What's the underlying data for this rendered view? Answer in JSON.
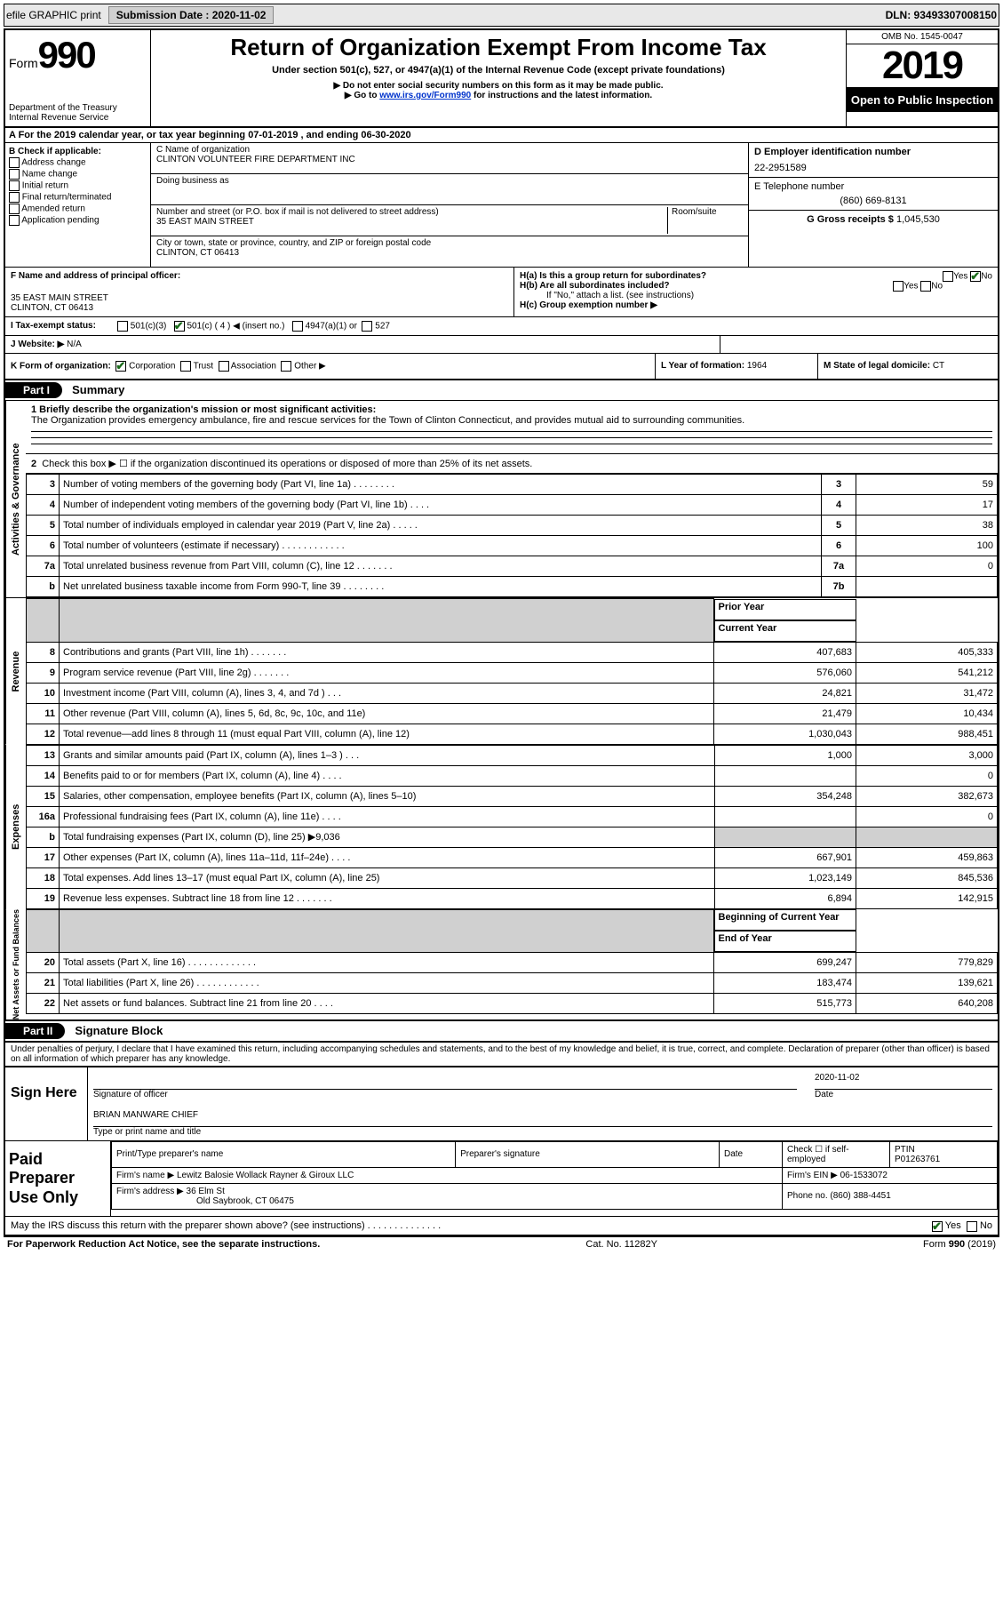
{
  "topbar": {
    "efile": "efile GRAPHIC print",
    "btn1": "Submission Date : 2020-11-02",
    "dln": "DLN: 93493307008150"
  },
  "header": {
    "form_label": "Form",
    "form_num": "990",
    "dept": "Department of the Treasury\nInternal Revenue Service",
    "title": "Return of Organization Exempt From Income Tax",
    "sub": "Under section 501(c), 527, or 4947(a)(1) of the Internal Revenue Code (except private foundations)",
    "warn1": "▶ Do not enter social security numbers on this form as it may be made public.",
    "warn2_pre": "▶ Go to ",
    "warn2_link": "www.irs.gov/Form990",
    "warn2_post": " for instructions and the latest information.",
    "omb": "OMB No. 1545-0047",
    "year": "2019",
    "inspect": "Open to Public Inspection"
  },
  "rowA": "A For the 2019 calendar year, or tax year beginning 07-01-2019    , and ending 06-30-2020",
  "sectB": {
    "b_label": "B Check if applicable:",
    "opts": [
      "Address change",
      "Name change",
      "Initial return",
      "Final return/terminated",
      "Amended return",
      "Application pending"
    ],
    "c_label": "C Name of organization",
    "c_name": "CLINTON VOLUNTEER FIRE DEPARTMENT INC",
    "dba": "Doing business as",
    "addr_label": "Number and street (or P.O. box if mail is not delivered to street address)",
    "room": "Room/suite",
    "addr": "35 EAST MAIN STREET",
    "city_label": "City or town, state or province, country, and ZIP or foreign postal code",
    "city": "CLINTON, CT  06413",
    "d_label": "D Employer identification number",
    "d_val": "22-2951589",
    "e_label": "E Telephone number",
    "e_val": "(860) 669-8131",
    "g_label": "G Gross receipts $",
    "g_val": "1,045,530"
  },
  "rowFH": {
    "f_label": "F Name and address of principal officer:",
    "f_addr1": "35 EAST MAIN STREET",
    "f_addr2": "CLINTON, CT  06413",
    "ha_label": "H(a)  Is this a group return for subordinates?",
    "hb_label": "H(b)  Are all subordinates included?",
    "hb_note": "If \"No,\" attach a list. (see instructions)",
    "hc_label": "H(c)  Group exemption number ▶",
    "yes": "Yes",
    "no": "No"
  },
  "taxrow": {
    "i_label": "I    Tax-exempt status:",
    "opt1": "501(c)(3)",
    "opt2": "501(c) ( 4 ) ◀ (insert no.)",
    "opt3": "4947(a)(1) or",
    "opt4": "527"
  },
  "jrow": {
    "j_label": "J    Website: ▶",
    "j_val": "N/A"
  },
  "krow": {
    "k_label": "K Form of organization:",
    "k_opts": [
      "Corporation",
      "Trust",
      "Association",
      "Other ▶"
    ],
    "l_label": "L Year of formation:",
    "l_val": "1964",
    "m_label": "M State of legal domicile:",
    "m_val": "CT"
  },
  "part1": {
    "bar": "Part I",
    "title": "Summary",
    "q1": "1  Briefly describe the organization's mission or most significant activities:",
    "mission": "The Organization provides emergency ambulance, fire and rescue services for the Town of Clinton Connecticut, and provides mutual aid to surrounding communities.",
    "q2": "Check this box ▶ ☐  if the organization discontinued its operations or disposed of more than 25% of its net assets."
  },
  "sides": {
    "gov": "Activities & Governance",
    "rev": "Revenue",
    "exp": "Expenses",
    "net": "Net Assets or Fund Balances"
  },
  "lines_gov": [
    {
      "n": "3",
      "d": "Number of voting members of the governing body (Part VI, line 1a)  .   .   .   .   .   .   .   .",
      "b": "3",
      "v": "59"
    },
    {
      "n": "4",
      "d": "Number of independent voting members of the governing body (Part VI, line 1b)  .   .   .   .",
      "b": "4",
      "v": "17"
    },
    {
      "n": "5",
      "d": "Total number of individuals employed in calendar year 2019 (Part V, line 2a)  .   .   .   .   .",
      "b": "5",
      "v": "38"
    },
    {
      "n": "6",
      "d": "Total number of volunteers (estimate if necessary)   .   .   .   .   .   .   .   .   .   .   .   .",
      "b": "6",
      "v": "100"
    },
    {
      "n": "7a",
      "d": "Total unrelated business revenue from Part VIII, column (C), line 12  .   .   .   .   .   .   .",
      "b": "7a",
      "v": "0"
    },
    {
      "n": "b",
      "d": "Net unrelated business taxable income from Form 990-T, line 39   .   .   .   .   .   .   .   .",
      "b": "7b",
      "v": ""
    }
  ],
  "col_hdr": {
    "py": "Prior Year",
    "cy": "Current Year"
  },
  "lines_rev": [
    {
      "n": "8",
      "d": "Contributions and grants (Part VIII, line 1h)   .   .   .   .   .   .   .",
      "py": "407,683",
      "cy": "405,333"
    },
    {
      "n": "9",
      "d": "Program service revenue (Part VIII, line 2g)   .   .   .   .   .   .   .",
      "py": "576,060",
      "cy": "541,212"
    },
    {
      "n": "10",
      "d": "Investment income (Part VIII, column (A), lines 3, 4, and 7d )   .   .   .",
      "py": "24,821",
      "cy": "31,472"
    },
    {
      "n": "11",
      "d": "Other revenue (Part VIII, column (A), lines 5, 6d, 8c, 9c, 10c, and 11e)",
      "py": "21,479",
      "cy": "10,434"
    },
    {
      "n": "12",
      "d": "Total revenue—add lines 8 through 11 (must equal Part VIII, column (A), line 12)",
      "py": "1,030,043",
      "cy": "988,451"
    }
  ],
  "lines_exp": [
    {
      "n": "13",
      "d": "Grants and similar amounts paid (Part IX, column (A), lines 1–3 )  .   .   .",
      "py": "1,000",
      "cy": "3,000"
    },
    {
      "n": "14",
      "d": "Benefits paid to or for members (Part IX, column (A), line 4)  .   .   .   .",
      "py": "",
      "cy": "0"
    },
    {
      "n": "15",
      "d": "Salaries, other compensation, employee benefits (Part IX, column (A), lines 5–10)",
      "py": "354,248",
      "cy": "382,673"
    },
    {
      "n": "16a",
      "d": "Professional fundraising fees (Part IX, column (A), line 11e)  .   .   .   .",
      "py": "",
      "cy": "0"
    },
    {
      "n": "b",
      "d": "Total fundraising expenses (Part IX, column (D), line 25) ▶9,036",
      "py": "shade",
      "cy": "shade"
    },
    {
      "n": "17",
      "d": "Other expenses (Part IX, column (A), lines 11a–11d, 11f–24e)  .   .   .   .",
      "py": "667,901",
      "cy": "459,863"
    },
    {
      "n": "18",
      "d": "Total expenses. Add lines 13–17 (must equal Part IX, column (A), line 25)",
      "py": "1,023,149",
      "cy": "845,536"
    },
    {
      "n": "19",
      "d": "Revenue less expenses. Subtract line 18 from line 12 .   .   .   .   .   .   .",
      "py": "6,894",
      "cy": "142,915"
    }
  ],
  "col_hdr2": {
    "py": "Beginning of Current Year",
    "cy": "End of Year"
  },
  "lines_net": [
    {
      "n": "20",
      "d": "Total assets (Part X, line 16)  .   .   .   .   .   .   .   .   .   .   .   .   .",
      "py": "699,247",
      "cy": "779,829"
    },
    {
      "n": "21",
      "d": "Total liabilities (Part X, line 26)  .   .   .   .   .   .   .   .   .   .   .   .",
      "py": "183,474",
      "cy": "139,621"
    },
    {
      "n": "22",
      "d": "Net assets or fund balances. Subtract line 21 from line 20  .   .   .   .",
      "py": "515,773",
      "cy": "640,208"
    }
  ],
  "part2": {
    "bar": "Part II",
    "title": "Signature Block"
  },
  "penalty": "Under penalties of perjury, I declare that I have examined this return, including accompanying schedules and statements, and to the best of my knowledge and belief, it is true, correct, and complete. Declaration of preparer (other than officer) is based on all information of which preparer has any knowledge.",
  "sign": {
    "lab": "Sign Here",
    "sig_off": "Signature of officer",
    "date_lab": "Date",
    "date": "2020-11-02",
    "name": "BRIAN MANWARE  CHIEF",
    "name_lab": "Type or print name and title"
  },
  "paid": {
    "lab": "Paid Preparer Use Only",
    "h1": "Print/Type preparer's name",
    "h2": "Preparer's signature",
    "h3": "Date",
    "h4": "Check ☐ if self-employed",
    "h5": "PTIN",
    "ptin": "P01263761",
    "firm_lab": "Firm's name    ▶",
    "firm": "Lewitz Balosie Wollack Rayner & Giroux LLC",
    "ein_lab": "Firm's EIN ▶",
    "ein": "06-1533072",
    "addr_lab": "Firm's address ▶",
    "addr1": "36 Elm St",
    "addr2": "Old Saybrook, CT  06475",
    "ph_lab": "Phone no.",
    "ph": "(860) 388-4451"
  },
  "discuss": "May the IRS discuss this return with the preparer shown above? (see instructions)   .   .   .   .   .   .   .   .   .   .   .   .   .   .",
  "footer": {
    "l": "For Paperwork Reduction Act Notice, see the separate instructions.",
    "m": "Cat. No. 11282Y",
    "r": "Form 990 (2019)"
  }
}
